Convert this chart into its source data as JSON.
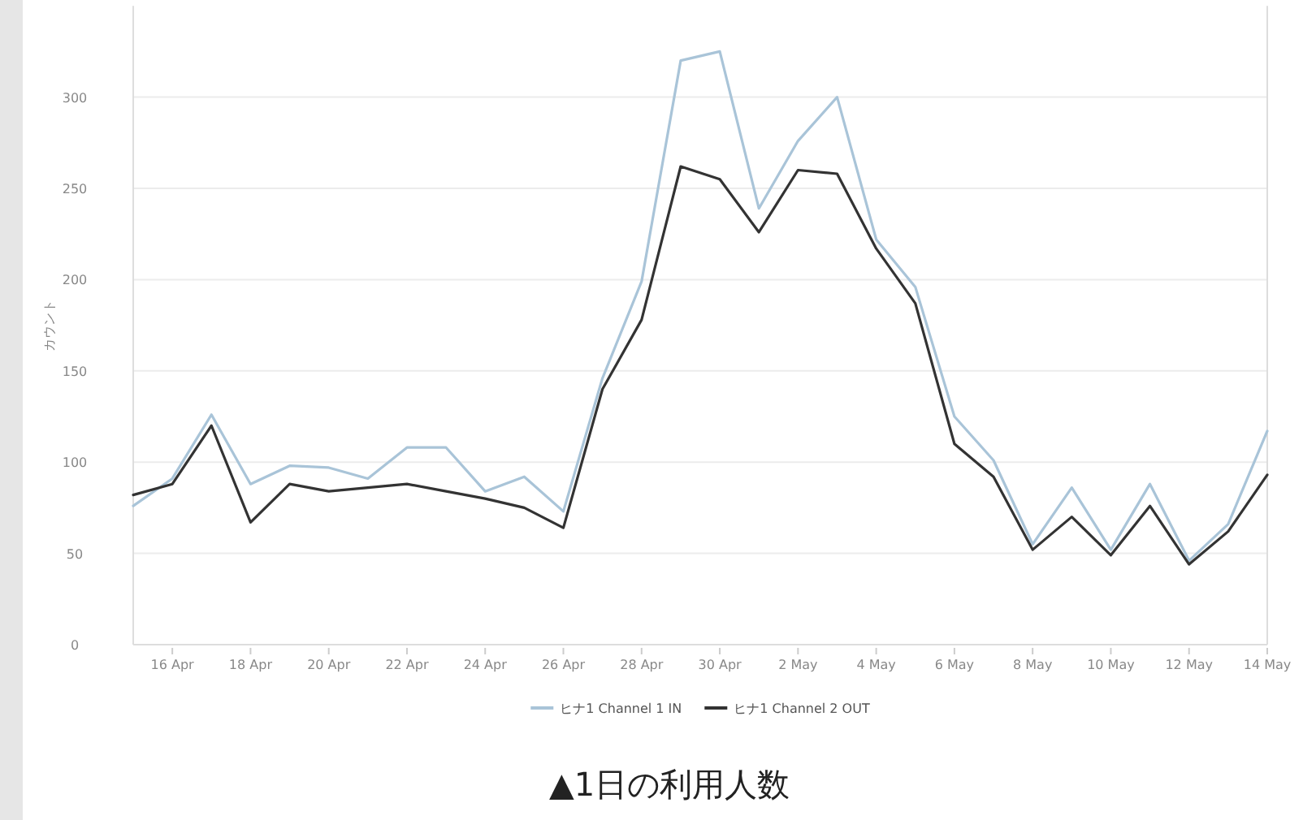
{
  "chart_data": {
    "type": "line",
    "ylabel": "カウント",
    "annotations": [
      "▲1日の利用人数"
    ],
    "x": [
      "--04-15",
      "--04-16",
      "--04-17",
      "--04-18",
      "--04-19",
      "--04-20",
      "--04-21",
      "--04-22",
      "--04-23",
      "--04-24",
      "--04-25",
      "--04-26",
      "--04-27",
      "--04-28",
      "--04-29",
      "--04-30",
      "--05-01",
      "--05-02",
      "--05-03",
      "--05-04",
      "--05-05",
      "--05-06",
      "--05-07",
      "--05-08",
      "--05-09",
      "--05-10",
      "--05-11",
      "--05-12",
      "--05-13",
      "--05-14"
    ],
    "series": [
      {
        "name": "ヒナ1 Channel 1 IN",
        "color": "#a9c4d8",
        "values": [
          76,
          91,
          126,
          88,
          98,
          97,
          91,
          108,
          108,
          84,
          92,
          73,
          146,
          199,
          320,
          325,
          239,
          276,
          300,
          222,
          196,
          125,
          101,
          55,
          86,
          52,
          88,
          46,
          66,
          117
        ]
      },
      {
        "name": "ヒナ1 Channel 2 OUT",
        "color": "#333333",
        "values": [
          82,
          88,
          120,
          67,
          88,
          84,
          86,
          88,
          84,
          80,
          75,
          64,
          140,
          178,
          262,
          255,
          226,
          260,
          258,
          217,
          187,
          110,
          92,
          52,
          70,
          49,
          76,
          44,
          62,
          93
        ]
      }
    ],
    "xlim": [
      "--04-15",
      "--05-14"
    ],
    "ylim": [
      0,
      350
    ],
    "yticks": [
      0,
      50,
      100,
      150,
      200,
      250,
      300
    ],
    "xticks": [
      {
        "value": "--04-16",
        "label": "16 Apr"
      },
      {
        "value": "--04-18",
        "label": "18 Apr"
      },
      {
        "value": "--04-20",
        "label": "20 Apr"
      },
      {
        "value": "--04-22",
        "label": "22 Apr"
      },
      {
        "value": "--04-24",
        "label": "24 Apr"
      },
      {
        "value": "--04-26",
        "label": "26 Apr"
      },
      {
        "value": "--04-28",
        "label": "28 Apr"
      },
      {
        "value": "--04-30",
        "label": "30 Apr"
      },
      {
        "value": "--05-02",
        "label": "2 May"
      },
      {
        "value": "--05-04",
        "label": "4 May"
      },
      {
        "value": "--05-06",
        "label": "6 May"
      },
      {
        "value": "--05-08",
        "label": "8 May"
      },
      {
        "value": "--05-10",
        "label": "10 May"
      },
      {
        "value": "--05-12",
        "label": "12 May"
      },
      {
        "value": "--05-14",
        "label": "14 May"
      }
    ],
    "grid": "y",
    "legend": "bottom",
    "marker": "none",
    "line_style": "solid"
  }
}
